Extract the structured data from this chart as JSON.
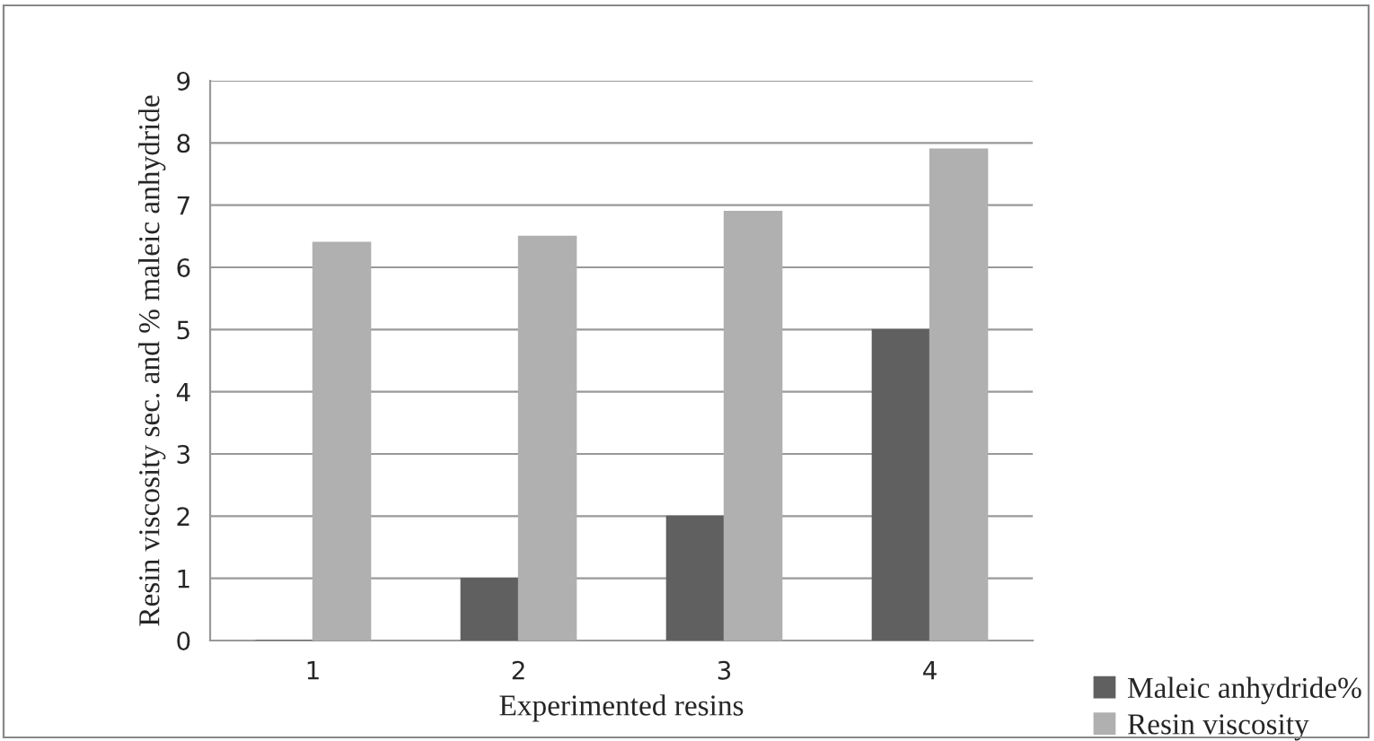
{
  "chart_data": {
    "type": "bar",
    "xlabel": "Experimented resins",
    "ylabel": "Resin viscosity sec. and % maleic anhydride",
    "categories": [
      "1",
      "2",
      "3",
      "4"
    ],
    "series": [
      {
        "name": "Maleic anhydride%",
        "color": "#606060",
        "values": [
          0,
          1,
          2,
          5
        ]
      },
      {
        "name": "Resin viscosity",
        "color": "#b0b0b0",
        "values": [
          6.4,
          6.5,
          6.9,
          7.9
        ]
      }
    ],
    "ylim": [
      0,
      9
    ],
    "yticks": [
      0,
      1,
      2,
      3,
      4,
      5,
      6,
      7,
      8,
      9
    ],
    "grid": "y",
    "legend": "bottom right"
  }
}
